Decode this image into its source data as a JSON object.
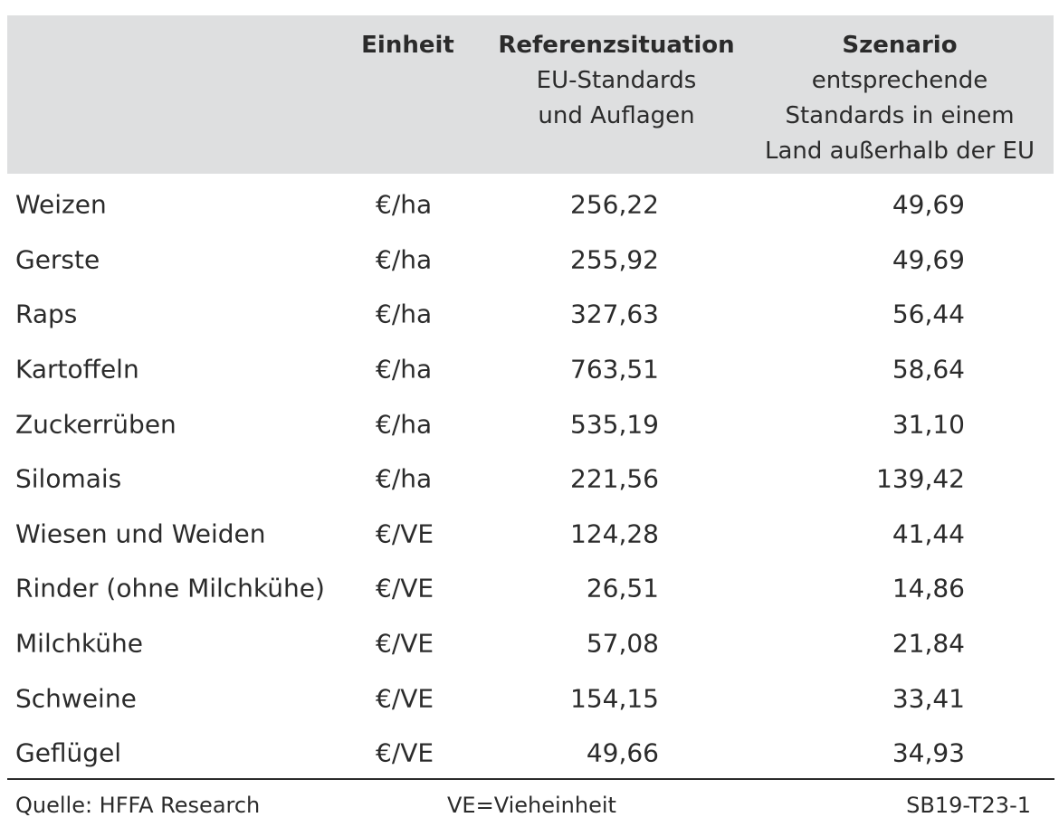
{
  "header": {
    "unit": "Einheit",
    "reference": {
      "title": "Referenzsituation",
      "lines": [
        "EU-Standards",
        "und Auflagen"
      ]
    },
    "scenario": {
      "title": "Szenario",
      "lines": [
        "entsprechende",
        "Standards in einem",
        "Land außerhalb der EU"
      ]
    }
  },
  "rows": [
    {
      "name": "Weizen",
      "unit": "€/ha",
      "reference": "256,22",
      "scenario": "49,69"
    },
    {
      "name": "Gerste",
      "unit": "€/ha",
      "reference": "255,92",
      "scenario": "49,69"
    },
    {
      "name": "Raps",
      "unit": "€/ha",
      "reference": "327,63",
      "scenario": "56,44"
    },
    {
      "name": "Kartoffeln",
      "unit": "€/ha",
      "reference": "763,51",
      "scenario": "58,64"
    },
    {
      "name": "Zuckerrüben",
      "unit": "€/ha",
      "reference": "535,19",
      "scenario": "31,10"
    },
    {
      "name": "Silomais",
      "unit": "€/ha",
      "reference": "221,56",
      "scenario": "139,42"
    },
    {
      "name": "Wiesen und Weiden",
      "unit": "€/VE",
      "reference": "124,28",
      "scenario": "41,44"
    },
    {
      "name": "Rinder (ohne Milchkühe)",
      "unit": "€/VE",
      "reference": "26,51",
      "scenario": "14,86"
    },
    {
      "name": "Milchkühe",
      "unit": "€/VE",
      "reference": "57,08",
      "scenario": "21,84"
    },
    {
      "name": "Schweine",
      "unit": "€/VE",
      "reference": "154,15",
      "scenario": "33,41"
    },
    {
      "name": "Geflügel",
      "unit": "€/VE",
      "reference": "49,66",
      "scenario": "34,93"
    }
  ],
  "footer": {
    "source": "Quelle: HFFA Research",
    "note": "VE=Vieheinheit",
    "code": "SB19-T23-1"
  }
}
